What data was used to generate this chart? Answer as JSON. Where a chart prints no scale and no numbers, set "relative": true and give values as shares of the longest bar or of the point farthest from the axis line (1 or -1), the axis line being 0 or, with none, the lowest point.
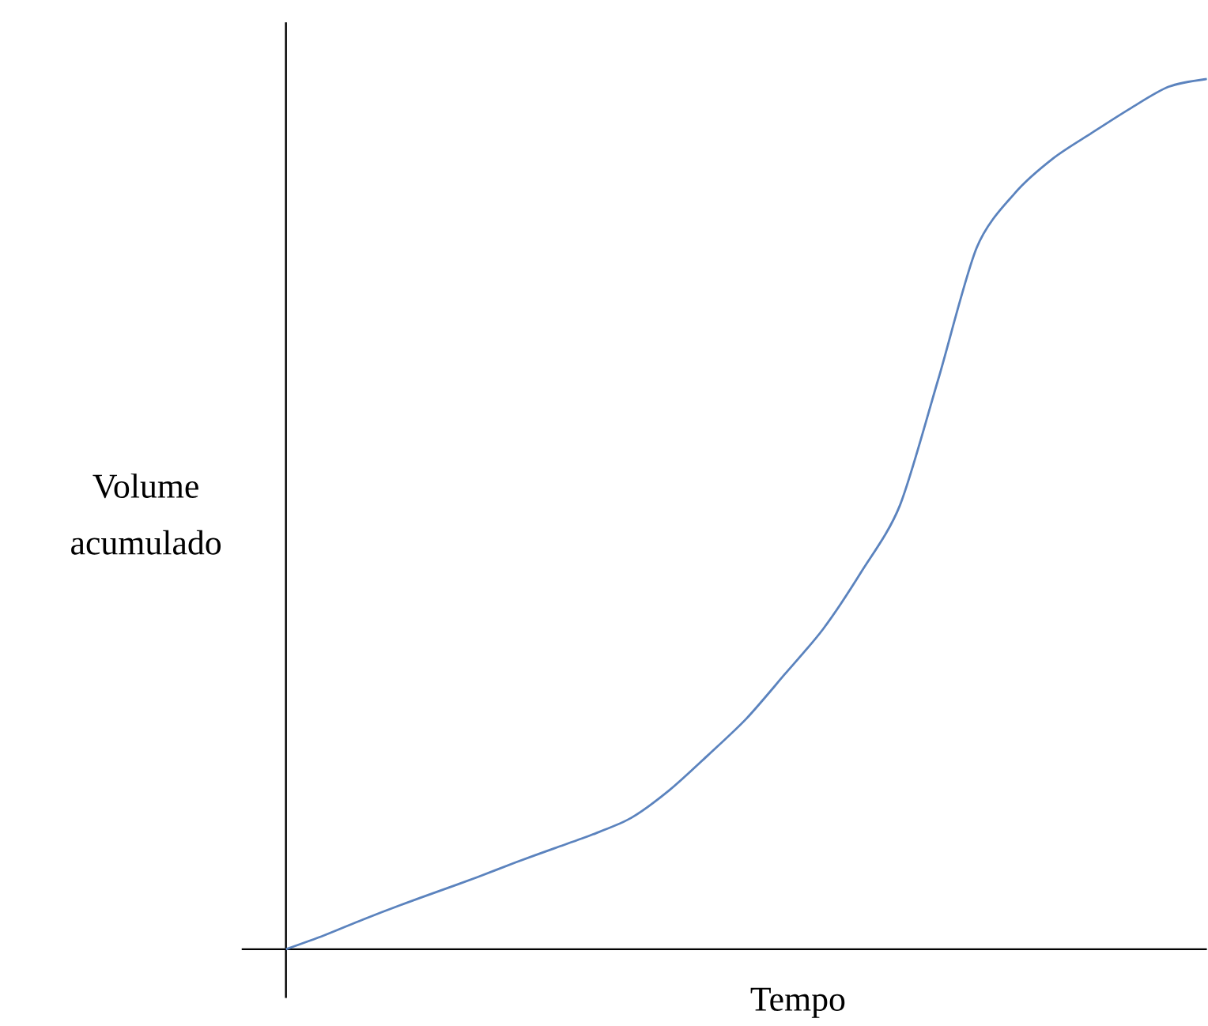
{
  "chart_data": {
    "type": "line",
    "relative": true,
    "xlabel": "Tempo",
    "ylabel": "Volume acumulado",
    "categories": [
      null,
      null,
      null,
      null,
      null,
      null,
      null,
      null,
      null,
      null,
      null,
      null,
      null,
      null,
      null,
      null,
      null,
      null,
      null,
      null,
      null,
      null,
      null,
      null,
      null
    ],
    "series": [
      {
        "color": "#5b83be",
        "values": [
          0,
          0.016,
          0.034,
          0.051,
          0.067,
          0.083,
          0.1,
          0.116,
          0.132,
          0.151,
          0.183,
          0.223,
          0.265,
          0.316,
          0.368,
          0.434,
          0.51,
          0.655,
          0.806,
          0.869,
          0.909,
          0.938,
          0.966,
          0.991,
          1.0
        ]
      }
    ]
  }
}
